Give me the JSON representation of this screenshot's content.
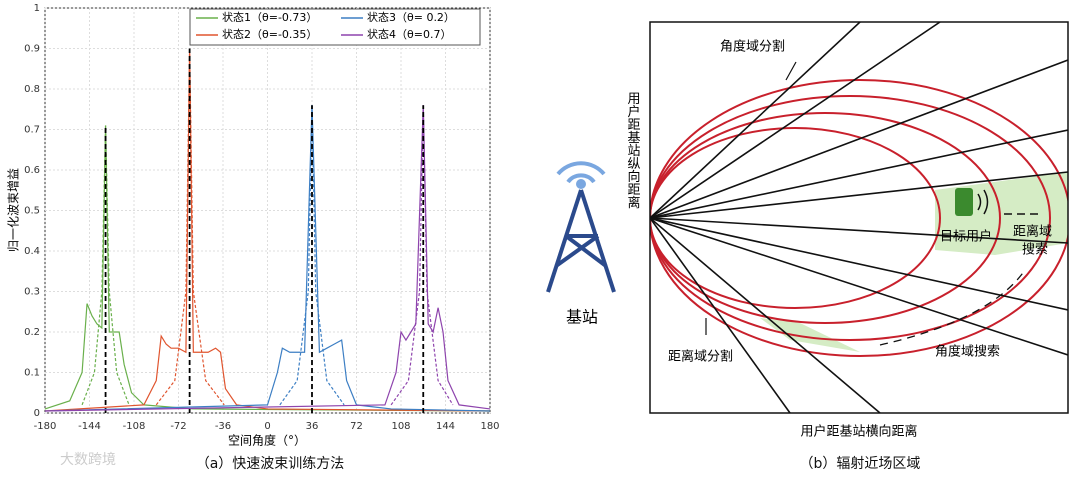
{
  "chart_data": {
    "type": "line",
    "xlabel": "空间角度（°）",
    "ylabel": "归一化波束增益",
    "caption": "（a）快速波束训练方法",
    "xlim": [
      -180,
      180
    ],
    "xticks": [
      -180,
      -144,
      -108,
      -72,
      -36,
      0,
      36,
      72,
      108,
      144,
      180
    ],
    "ylim": [
      0,
      1
    ],
    "yticks": [
      0,
      0.1,
      0.2,
      0.3,
      0.4,
      0.5,
      0.6,
      0.7,
      0.8,
      0.9,
      1
    ],
    "grid": true,
    "legend": "top",
    "series": [
      {
        "name": "状态1（θ=-0.73）",
        "color": "#6ab04c",
        "x": [
          -180,
          -160,
          -150,
          -146,
          -142,
          -138,
          -134,
          -131,
          -128,
          -124,
          -120,
          -116,
          -110,
          -100,
          -60,
          180
        ],
        "values": [
          0.01,
          0.03,
          0.1,
          0.27,
          0.24,
          0.22,
          0.21,
          0.71,
          0.2,
          0.2,
          0.2,
          0.12,
          0.05,
          0.02,
          0.01,
          0.005
        ],
        "narrow_x": [
          -150,
          -140,
          -134,
          -131,
          -128,
          -122,
          -112
        ],
        "narrow_values": [
          0.02,
          0.1,
          0.3,
          0.71,
          0.3,
          0.1,
          0.02
        ]
      },
      {
        "name": "状态2（θ=-0.35）",
        "color": "#e0552f",
        "x": [
          -180,
          -100,
          -90,
          -86,
          -82,
          -78,
          -72,
          -66,
          -63,
          -60,
          -54,
          -48,
          -42,
          -38,
          -34,
          -25,
          0,
          180
        ],
        "values": [
          0.005,
          0.02,
          0.08,
          0.19,
          0.17,
          0.16,
          0.16,
          0.15,
          0.9,
          0.15,
          0.15,
          0.15,
          0.16,
          0.15,
          0.06,
          0.02,
          0.01,
          0.005
        ],
        "narrow_x": [
          -90,
          -75,
          -66,
          -63,
          -60,
          -50,
          -35
        ],
        "narrow_values": [
          0.02,
          0.08,
          0.3,
          0.9,
          0.3,
          0.08,
          0.02
        ]
      },
      {
        "name": "状态3（θ= 0.2）",
        "color": "#3d7fc4",
        "x": [
          -180,
          0,
          8,
          12,
          18,
          24,
          30,
          36,
          42,
          48,
          54,
          60,
          64,
          72,
          100,
          180
        ],
        "values": [
          0.005,
          0.02,
          0.1,
          0.16,
          0.15,
          0.15,
          0.15,
          0.76,
          0.15,
          0.16,
          0.17,
          0.18,
          0.08,
          0.02,
          0.01,
          0.005
        ],
        "narrow_x": [
          10,
          24,
          33,
          36,
          39,
          48,
          62
        ],
        "narrow_values": [
          0.02,
          0.08,
          0.3,
          0.76,
          0.3,
          0.08,
          0.02
        ]
      },
      {
        "name": "状态4（θ=0.7）",
        "color": "#8e44ad",
        "x": [
          -180,
          95,
          104,
          108,
          112,
          116,
          120,
          126,
          130,
          134,
          138,
          142,
          146,
          155,
          180
        ],
        "values": [
          0.005,
          0.02,
          0.1,
          0.2,
          0.18,
          0.2,
          0.22,
          0.76,
          0.22,
          0.2,
          0.26,
          0.2,
          0.08,
          0.02,
          0.01
        ],
        "narrow_x": [
          100,
          114,
          123,
          126,
          129,
          138,
          150
        ],
        "narrow_values": [
          0.02,
          0.08,
          0.3,
          0.76,
          0.3,
          0.08,
          0.02
        ]
      }
    ]
  },
  "watermark": "大数跨境",
  "diagram": {
    "caption": "（b）辐射近场区域",
    "station": "基站",
    "angle_split": "角度域分割",
    "vertical_axis": "用户距基站纵向距离",
    "horizontal_axis": "用户距基站横向距离",
    "target": "目标用户",
    "range_search": [
      "距离域",
      "搜索"
    ],
    "range_split": "距离域分割",
    "angle_search": "角度域搜索"
  }
}
